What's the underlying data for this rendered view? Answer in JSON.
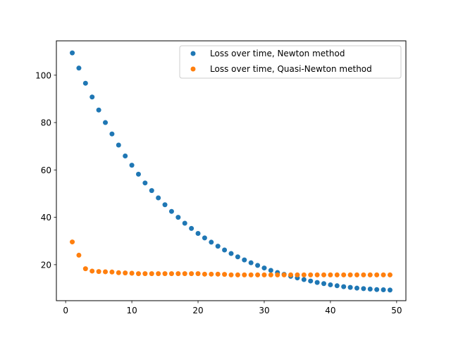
{
  "chart_data": {
    "type": "scatter",
    "title": "",
    "xlabel": "",
    "ylabel": "",
    "xlim": [
      -1.4,
      51.4
    ],
    "ylim": [
      4.8,
      114.5
    ],
    "xticks": [
      0,
      10,
      20,
      30,
      40,
      50
    ],
    "yticks": [
      20,
      40,
      60,
      80,
      100
    ],
    "grid": false,
    "legend_position": "top-right",
    "x": [
      1,
      2,
      3,
      4,
      5,
      6,
      7,
      8,
      9,
      10,
      11,
      12,
      13,
      14,
      15,
      16,
      17,
      18,
      19,
      20,
      21,
      22,
      23,
      24,
      25,
      26,
      27,
      28,
      29,
      30,
      31,
      32,
      33,
      34,
      35,
      36,
      37,
      38,
      39,
      40,
      41,
      42,
      43,
      44,
      45,
      46,
      47,
      48,
      49
    ],
    "series": [
      {
        "name": "Loss over time, Newton method",
        "color": "#1f77b4",
        "values": [
          109.4,
          103.0,
          96.6,
          90.8,
          85.3,
          80.0,
          75.2,
          70.5,
          65.9,
          62.0,
          58.2,
          54.5,
          51.3,
          48.2,
          45.3,
          42.5,
          40.0,
          37.5,
          35.3,
          33.2,
          31.3,
          29.5,
          27.8,
          26.2,
          24.7,
          23.3,
          22.0,
          20.8,
          19.7,
          18.6,
          17.6,
          16.7,
          15.9,
          15.1,
          14.4,
          13.7,
          13.1,
          12.5,
          12.0,
          11.5,
          11.1,
          10.7,
          10.4,
          10.1,
          9.9,
          9.7,
          9.5,
          9.4,
          9.3
        ]
      },
      {
        "name": "Loss over time, Quasi-Newton method",
        "color": "#ff7f0e",
        "values": [
          29.6,
          24.0,
          18.3,
          17.3,
          17.1,
          17.0,
          16.9,
          16.6,
          16.5,
          16.4,
          16.2,
          16.2,
          16.2,
          16.2,
          16.2,
          16.2,
          16.2,
          16.2,
          16.2,
          16.2,
          16.0,
          16.0,
          16.0,
          15.9,
          15.7,
          15.7,
          15.7,
          15.7,
          15.7,
          15.7,
          15.7,
          15.7,
          15.7,
          15.7,
          15.7,
          15.7,
          15.7,
          15.7,
          15.7,
          15.7,
          15.7,
          15.7,
          15.7,
          15.7,
          15.7,
          15.7,
          15.7,
          15.7,
          15.7
        ]
      }
    ]
  }
}
